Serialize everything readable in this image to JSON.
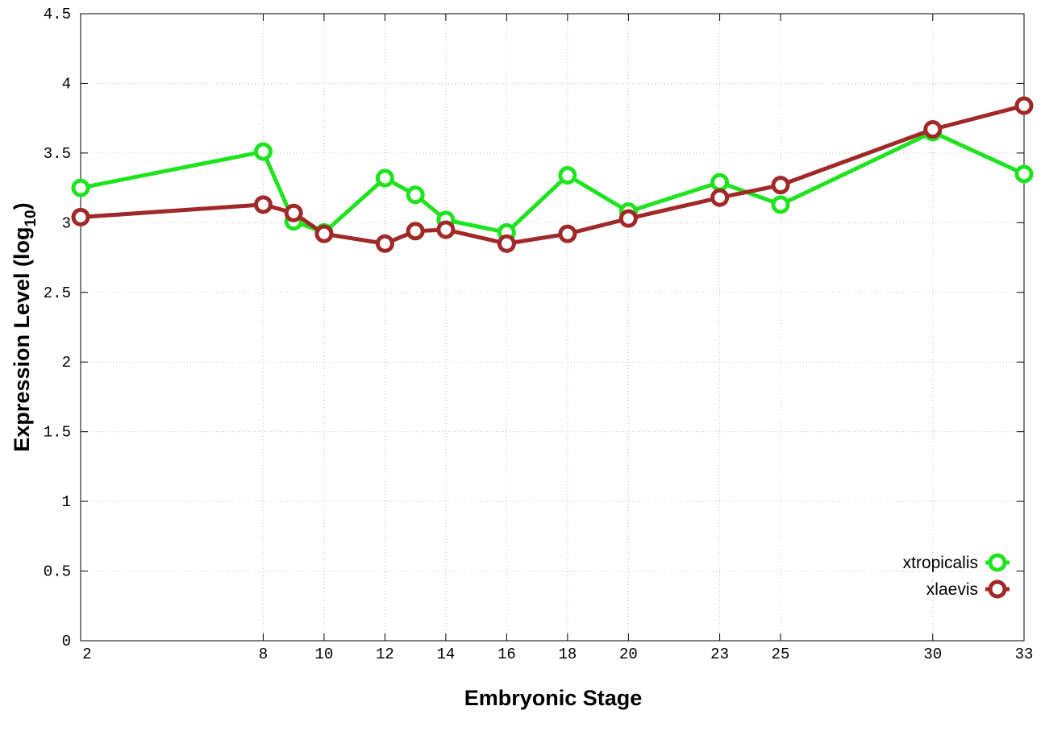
{
  "chart_data": {
    "type": "line",
    "title": "",
    "xlabel": "Embryonic Stage",
    "ylabel_parts": {
      "main": "Expression Level (log",
      "sub": "10",
      "end": ")"
    },
    "x": [
      2,
      8,
      9,
      10,
      12,
      13,
      14,
      16,
      18,
      20,
      23,
      25,
      30,
      33
    ],
    "xticks": [
      "2",
      "8",
      "10",
      "12",
      "14",
      "16",
      "18",
      "20",
      "23",
      "25",
      "30",
      "33"
    ],
    "xlim": [
      2,
      33
    ],
    "ylim": [
      0,
      4.5
    ],
    "yticks": [
      "0",
      "0.5",
      "1",
      "1.5",
      "2",
      "2.5",
      "3",
      "3.5",
      "4",
      "4.5"
    ],
    "grid": true,
    "legend_position": "bottom-right",
    "series": [
      {
        "name": "xtropicalis",
        "color": "#1ee31e",
        "values": [
          3.25,
          3.51,
          3.01,
          2.93,
          3.32,
          3.2,
          3.02,
          2.93,
          3.34,
          3.08,
          3.29,
          3.13,
          3.65,
          3.35
        ]
      },
      {
        "name": "xlaevis",
        "color": "#a02828",
        "values": [
          3.04,
          3.13,
          3.07,
          2.92,
          2.85,
          2.94,
          2.95,
          2.85,
          2.92,
          3.03,
          3.18,
          3.27,
          3.67,
          3.84
        ]
      }
    ]
  }
}
